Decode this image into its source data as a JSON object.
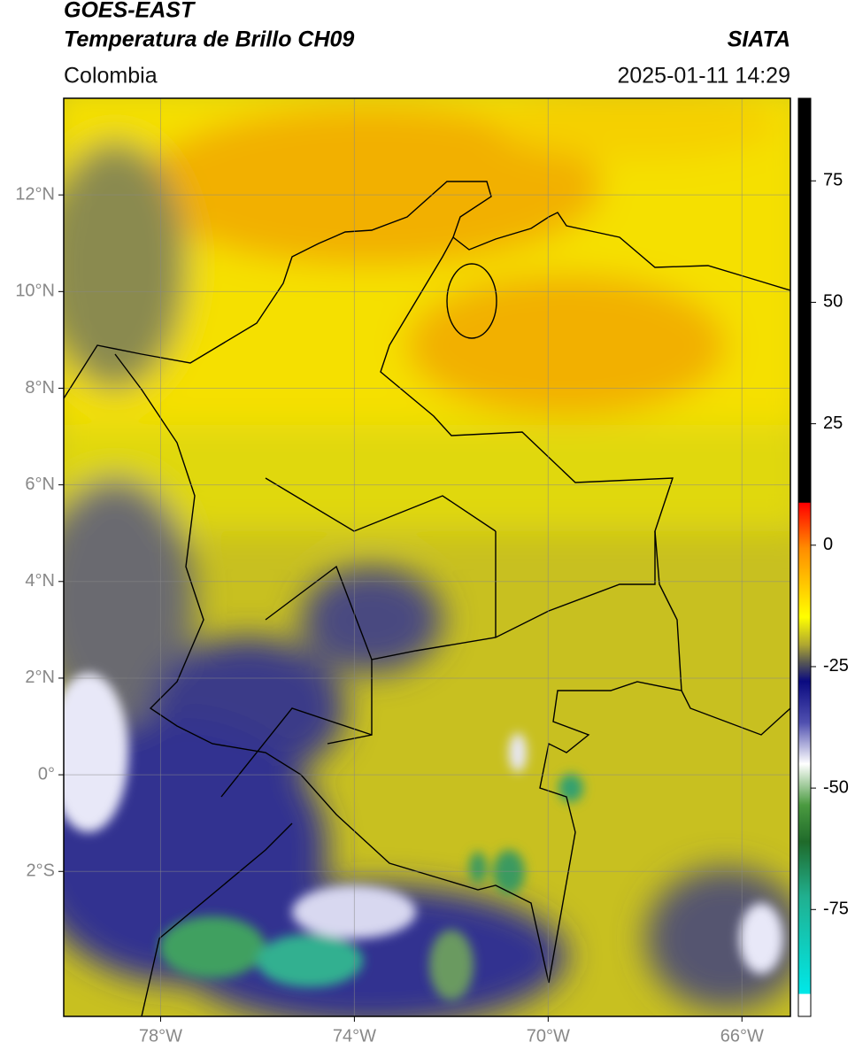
{
  "header": {
    "title": "GOES-EAST",
    "subtitle": "Temperatura de Brillo CH09",
    "source": "SIATA",
    "region": "Colombia",
    "datetime": "2025-01-11 14:29"
  },
  "map": {
    "xlim": [
      -80,
      -65
    ],
    "ylim": [
      -5,
      14
    ],
    "grid": true,
    "xticks": [
      {
        "value": -78,
        "label": "78°W"
      },
      {
        "value": -74,
        "label": "74°W"
      },
      {
        "value": -70,
        "label": "70°W"
      },
      {
        "value": -66,
        "label": "66°W"
      }
    ],
    "yticks": [
      {
        "value": 12,
        "label": "12°N"
      },
      {
        "value": 10,
        "label": "10°N"
      },
      {
        "value": 8,
        "label": "8°N"
      },
      {
        "value": 6,
        "label": "6°N"
      },
      {
        "value": 4,
        "label": "4°N"
      },
      {
        "value": 2,
        "label": "2°N"
      },
      {
        "value": 0,
        "label": "0°"
      },
      {
        "value": -2,
        "label": "2°S"
      }
    ]
  },
  "colorbar": {
    "lim": [
      -97,
      92
    ],
    "ticks": [
      75,
      50,
      25,
      0,
      -25,
      -50,
      -75
    ]
  }
}
